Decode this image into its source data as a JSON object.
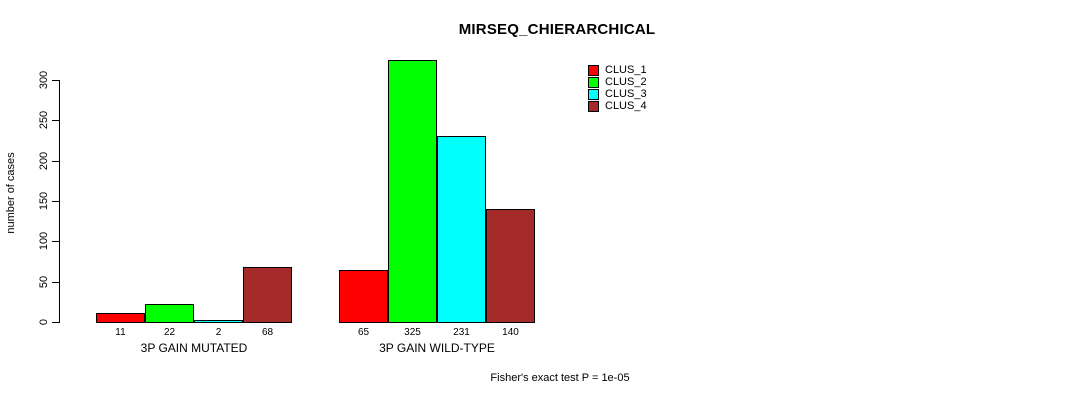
{
  "figure": {
    "background": "#FFFFFF",
    "title": "MIRSEQ_CHIERARCHICAL",
    "y_axis_title": "number of cases",
    "annotation": "Fisher's exact test P = 1e-05"
  },
  "chart_data": {
    "type": "bar",
    "title": "MIRSEQ_CHIERARCHICAL",
    "xlabel": "",
    "ylabel": "number of cases",
    "ylim": [
      0,
      300
    ],
    "yticks": [
      0,
      50,
      100,
      150,
      200,
      250,
      300
    ],
    "grid": false,
    "categories": [
      "3P GAIN MUTATED",
      "3P GAIN WILD-TYPE"
    ],
    "series": [
      {
        "name": "CLUS_1",
        "color": "#FF0000",
        "values": [
          11,
          65
        ]
      },
      {
        "name": "CLUS_2",
        "color": "#00FF00",
        "values": [
          22,
          325
        ]
      },
      {
        "name": "CLUS_3",
        "color": "#00FFFF",
        "values": [
          2,
          231
        ]
      },
      {
        "name": "CLUS_4",
        "color": "#A52A2A",
        "values": [
          68,
          140
        ]
      }
    ],
    "bar_value_labels": [
      [
        "11",
        "22",
        "2",
        "68"
      ],
      [
        "65",
        "325",
        "231",
        "140"
      ]
    ],
    "legend": {
      "position": "top-right",
      "entries": [
        "CLUS_1",
        "CLUS_2",
        "CLUS_3",
        "CLUS_4"
      ]
    },
    "annotation": "Fisher's exact test P = 1e-05"
  }
}
